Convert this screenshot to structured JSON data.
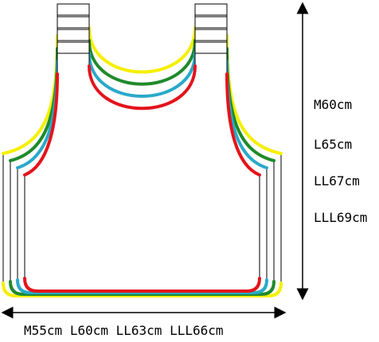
{
  "height_labels": [
    "M60cm",
    "L65cm",
    "LL67cm",
    "LLL69cm"
  ],
  "width_labels": [
    "M55cm",
    "L60cm",
    "LL63cm",
    "LLL66cm"
  ]
}
